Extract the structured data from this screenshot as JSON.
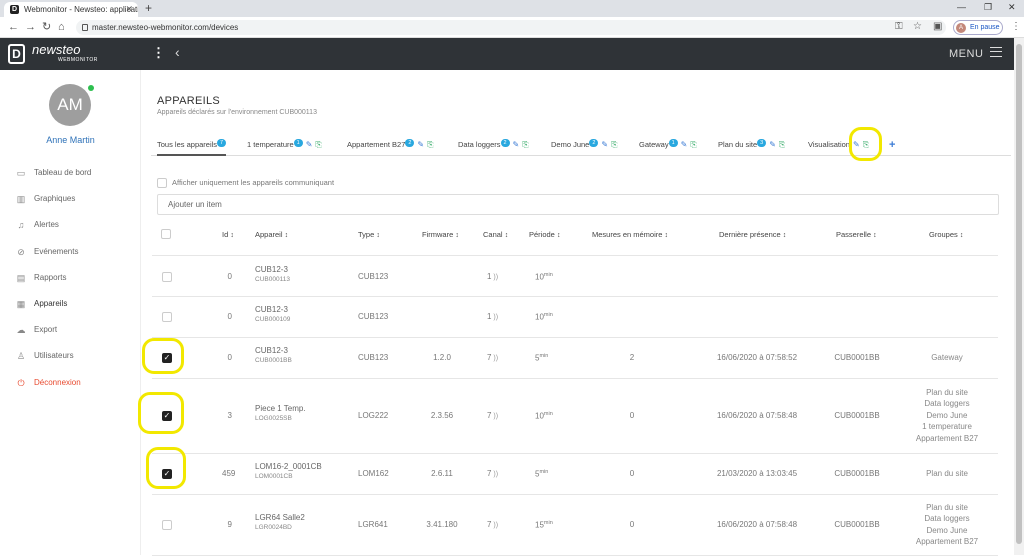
{
  "browser": {
    "tab_title": "Webmonitor - Newsteo: applicati",
    "url": "master.newsteo-webmonitor.com/devices",
    "profile_status": "En pause",
    "profile_initial": "A"
  },
  "header": {
    "logo_letter": "D",
    "logo_text": "newsteo",
    "logo_sub": "WEBMONITOR",
    "menu_label": "MENU"
  },
  "sidebar": {
    "avatar_initials": "AM",
    "user_name": "Anne Martin",
    "items": [
      {
        "label": "Tableau de bord",
        "icon": "monitor-icon"
      },
      {
        "label": "Graphiques",
        "icon": "bar-chart-icon"
      },
      {
        "label": "Alertes",
        "icon": "bell-icon"
      },
      {
        "label": "Evénements",
        "icon": "paperclip-icon"
      },
      {
        "label": "Rapports",
        "icon": "document-icon"
      },
      {
        "label": "Appareils",
        "icon": "grid-icon"
      },
      {
        "label": "Export",
        "icon": "cloud-icon"
      },
      {
        "label": "Utilisateurs",
        "icon": "user-icon"
      },
      {
        "label": "Déconnexion",
        "icon": "power-icon"
      }
    ]
  },
  "page": {
    "title": "APPAREILS",
    "subtitle": "Appareils déclarés sur l'environnement CUB000113",
    "only_communicating_label": "Afficher uniquement les appareils communiquant",
    "add_item_placeholder": "Ajouter un item"
  },
  "tabs": [
    {
      "label": "Tous les appareils",
      "badge": "7"
    },
    {
      "label": "1 temperature",
      "badge": "1"
    },
    {
      "label": "Appartement B27",
      "badge": "2"
    },
    {
      "label": "Data loggers",
      "badge": "2"
    },
    {
      "label": "Demo June",
      "badge": "2"
    },
    {
      "label": "Gateway",
      "badge": "1"
    },
    {
      "label": "Plan du site",
      "badge": "3"
    },
    {
      "label": "Visualisation",
      "badge": ""
    }
  ],
  "columns": {
    "id": "Id",
    "device": "Appareil",
    "type": "Type",
    "firmware": "Firmware",
    "channel": "Canal",
    "period": "Période",
    "stored": "Mesures en mémoire",
    "last_seen": "Dernière présence",
    "gateway": "Passerelle",
    "groups": "Groupes"
  },
  "rows": [
    {
      "checked": false,
      "id": "0",
      "name": "CUB12-3",
      "serial": "CUB000113",
      "type": "CUB123",
      "firmware": "",
      "channel": "1",
      "period": "10",
      "unit": "min",
      "stored": "",
      "last_seen": "",
      "gateway": "",
      "groups": []
    },
    {
      "checked": false,
      "id": "0",
      "name": "CUB12-3",
      "serial": "CUB000109",
      "type": "CUB123",
      "firmware": "",
      "channel": "1",
      "period": "10",
      "unit": "min",
      "stored": "",
      "last_seen": "",
      "gateway": "",
      "groups": []
    },
    {
      "checked": true,
      "id": "0",
      "name": "CUB12-3",
      "serial": "CUB0001BB",
      "type": "CUB123",
      "firmware": "1.2.0",
      "channel": "7",
      "period": "5",
      "unit": "min",
      "stored": "2",
      "last_seen": "16/06/2020 à 07:58:52",
      "gateway": "CUB0001BB",
      "groups": [
        "Gateway"
      ]
    },
    {
      "checked": true,
      "id": "3",
      "name": "Piece 1 Temp.",
      "serial": "LOG0025SB",
      "type": "LOG222",
      "firmware": "2.3.56",
      "channel": "7",
      "period": "10",
      "unit": "min",
      "stored": "0",
      "last_seen": "16/06/2020 à 07:58:48",
      "gateway": "CUB0001BB",
      "groups": [
        "Plan du site",
        "Data loggers",
        "Demo June",
        "1 temperature",
        "Appartement B27"
      ]
    },
    {
      "checked": true,
      "id": "459",
      "name": "LOM16-2_0001CB",
      "serial": "LOM0001CB",
      "type": "LOM162",
      "firmware": "2.6.11",
      "channel": "7",
      "period": "5",
      "unit": "min",
      "stored": "0",
      "last_seen": "21/03/2020 à 13:03:45",
      "gateway": "CUB0001BB",
      "groups": [
        "Plan du site"
      ]
    },
    {
      "checked": false,
      "id": "9",
      "name": "LGR64 Salle2",
      "serial": "LGR0024BD",
      "type": "LGR641",
      "firmware": "3.41.180",
      "channel": "7",
      "period": "15",
      "unit": "min",
      "stored": "0",
      "last_seen": "16/06/2020 à 07:58:48",
      "gateway": "CUB0001BB",
      "groups": [
        "Plan du site",
        "Data loggers",
        "Demo June",
        "Appartement B27"
      ]
    }
  ],
  "highlight_color": "#f2e800"
}
